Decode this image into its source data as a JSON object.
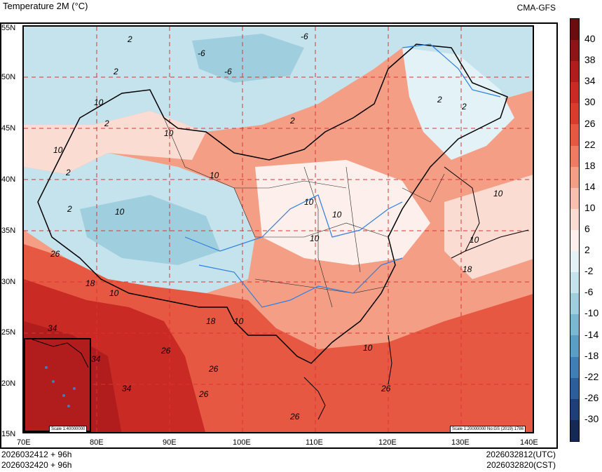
{
  "header": {
    "title": "Temperature  2M (°C)",
    "model": "CMA-GFS"
  },
  "footer": {
    "run_line1": "2026032412 + 96h",
    "run_line2": "2026032420 + 96h",
    "valid_utc": "2026032812(UTC)",
    "valid_cst": "2026032820(CST)"
  },
  "axes": {
    "lat_labels": [
      "55N",
      "50N",
      "45N",
      "40N",
      "35N",
      "30N",
      "25N",
      "20N",
      "15N"
    ],
    "lon_labels": [
      "70E",
      "80E",
      "90E",
      "100E",
      "110E",
      "120E",
      "130E",
      "140E"
    ]
  },
  "colorbar": {
    "labels": [
      "40",
      "38",
      "34",
      "30",
      "26",
      "22",
      "18",
      "14",
      "10",
      "6",
      "2",
      "-2",
      "-6",
      "-10",
      "-14",
      "-18",
      "-22",
      "-26",
      "-30"
    ],
    "colors": [
      "#6b0d0f",
      "#8e1516",
      "#b01d1c",
      "#c92a23",
      "#d93b2d",
      "#e75842",
      "#ef7c62",
      "#f59e86",
      "#f9bfae",
      "#fbdcd3",
      "#fdf0ec",
      "#e3f2f7",
      "#c5e3ec",
      "#9fcfdf",
      "#79b8d0",
      "#5a9ec5",
      "#3f7fb5",
      "#2d5e9c",
      "#1f3f7a",
      "#142a55"
    ]
  },
  "contour_labels": [
    "2",
    "-6",
    "2",
    "-6",
    "-6",
    "2",
    "10",
    "2",
    "10",
    "2",
    "10",
    "2",
    "10",
    "2",
    "10",
    "10",
    "10",
    "10",
    "10",
    "2",
    "10",
    "26",
    "18",
    "10",
    "18",
    "34",
    "34",
    "26",
    "26",
    "34",
    "26",
    "26",
    "18",
    "10",
    "10",
    "26"
  ],
  "scale_inset": "Scale 1:40000000",
  "scale_main": "Scale 1:20000000 No:GS (2019) 1786"
}
